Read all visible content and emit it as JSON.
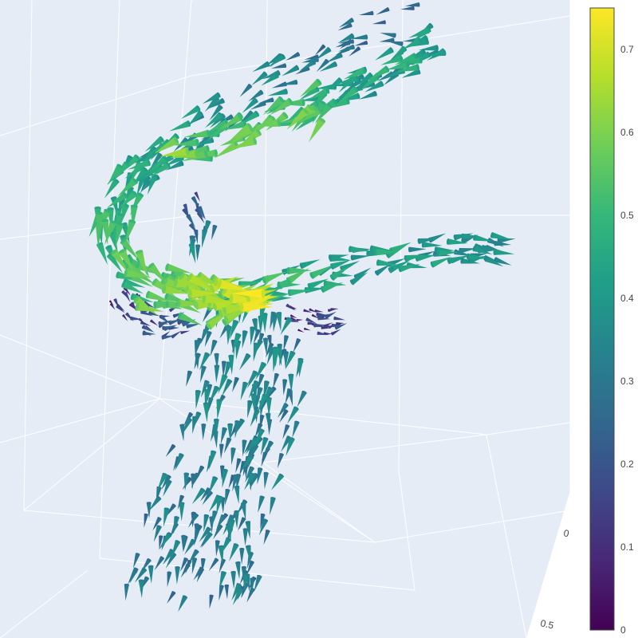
{
  "chart_data": {
    "type": "cone",
    "title": "",
    "scene": {
      "background": "#E5ECF6",
      "grid_color": "#FFFFFF",
      "x_tick_labels": [
        "0",
        "0.5"
      ],
      "grid": true
    },
    "colorscale": {
      "name": "Viridis",
      "stops": [
        "#440154",
        "#482878",
        "#3E4989",
        "#31688E",
        "#26828E",
        "#1F9E89",
        "#35B779",
        "#6ECE58",
        "#B5DE2B",
        "#FDE725"
      ],
      "range": [
        0,
        0.75
      ],
      "ticks": [
        {
          "value": 0,
          "label": "0"
        },
        {
          "value": 0.1,
          "label": "0.1"
        },
        {
          "value": 0.2,
          "label": "0.2"
        },
        {
          "value": 0.3,
          "label": "0.3"
        },
        {
          "value": 0.4,
          "label": "0.4"
        },
        {
          "value": 0.5,
          "label": "0.5"
        },
        {
          "value": 0.6,
          "label": "0.6"
        },
        {
          "value": 0.7,
          "label": "0.7"
        }
      ]
    },
    "magnitude_max": 0.75,
    "magnitude_min": 0,
    "structure": "vortex-tube flow field: upper curling band, central junction, right branch and lower descending column"
  }
}
